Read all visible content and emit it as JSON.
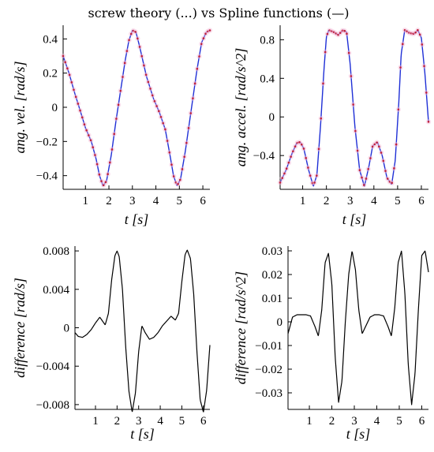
{
  "figure": {
    "title": "screw theory (...) vs Spline functions (—)",
    "colors": {
      "spline": "#1f2fd6",
      "screw": "#c0203a",
      "screw_fill": "#f2b8d8",
      "difference": "#000000",
      "axis": "#000000"
    }
  },
  "chart_data": [
    {
      "id": "ang-vel",
      "type": "line",
      "ylabel": "ang. vel. [rad/s]",
      "xlabel": "t [s]",
      "xlim": [
        0.05,
        6.3
      ],
      "ylim": [
        -0.48,
        0.48
      ],
      "xticks": [
        1,
        2,
        3,
        4,
        5,
        6
      ],
      "xtick_labels": [
        "1",
        "2",
        "3",
        "4",
        "5",
        "6"
      ],
      "yticks": [
        0.4,
        0.2,
        0,
        -0.2,
        -0.4
      ],
      "ytick_labels": [
        "0.4",
        "0.2",
        "0",
        "−0.2",
        "−0.4"
      ],
      "series": [
        {
          "style": "solid",
          "x": [
            0.05,
            0.3,
            0.55,
            0.8,
            1.0,
            1.25,
            1.45,
            1.6,
            1.75,
            1.9,
            2.1,
            2.3,
            2.5,
            2.7,
            2.85,
            3.0,
            3.15,
            3.3,
            3.6,
            3.9,
            4.15,
            4.4,
            4.6,
            4.75,
            4.9,
            5.05,
            5.25,
            5.5,
            5.75,
            5.95,
            6.15,
            6.3
          ],
          "y": [
            0.3,
            0.2,
            0.08,
            -0.03,
            -0.12,
            -0.2,
            -0.3,
            -0.4,
            -0.46,
            -0.43,
            -0.28,
            -0.08,
            0.1,
            0.28,
            0.39,
            0.45,
            0.44,
            0.36,
            0.18,
            0.05,
            -0.03,
            -0.13,
            -0.28,
            -0.4,
            -0.46,
            -0.42,
            -0.26,
            -0.02,
            0.22,
            0.38,
            0.44,
            0.45
          ]
        },
        {
          "style": "dotted",
          "samples": 70
        }
      ]
    },
    {
      "id": "ang-accel",
      "type": "line",
      "ylabel": "ang. accel. [rad/s^2]",
      "xlabel": "t [s]",
      "xlim": [
        0.05,
        6.3
      ],
      "ylim": [
        -0.75,
        0.95
      ],
      "xticks": [
        1,
        2,
        3,
        4,
        5,
        6
      ],
      "xtick_labels": [
        "1",
        "2",
        "3",
        "4",
        "5",
        "6"
      ],
      "yticks": [
        0.8,
        0.4,
        0,
        -0.4
      ],
      "ytick_labels": [
        "0.8",
        "0.4",
        "0",
        "−0.4"
      ],
      "series": [
        {
          "style": "solid",
          "x": [
            0.05,
            0.3,
            0.55,
            0.75,
            0.9,
            1.05,
            1.25,
            1.45,
            1.6,
            1.75,
            1.9,
            2.0,
            2.1,
            2.3,
            2.5,
            2.7,
            2.85,
            3.0,
            3.2,
            3.4,
            3.6,
            3.8,
            3.95,
            4.15,
            4.35,
            4.55,
            4.75,
            4.9,
            5.05,
            5.15,
            5.3,
            5.5,
            5.7,
            5.85,
            6.0,
            6.15,
            6.3
          ],
          "y": [
            -0.68,
            -0.55,
            -0.38,
            -0.27,
            -0.26,
            -0.33,
            -0.55,
            -0.72,
            -0.6,
            -0.1,
            0.5,
            0.83,
            0.9,
            0.88,
            0.85,
            0.9,
            0.88,
            0.55,
            -0.1,
            -0.55,
            -0.72,
            -0.5,
            -0.3,
            -0.26,
            -0.4,
            -0.63,
            -0.7,
            -0.45,
            0.15,
            0.65,
            0.9,
            0.87,
            0.86,
            0.9,
            0.82,
            0.45,
            -0.05
          ]
        },
        {
          "style": "dotted",
          "samples": 70
        }
      ]
    },
    {
      "id": "diff-vel",
      "type": "line",
      "ylabel": "difference [rad/s]",
      "xlabel": "t [s]",
      "xlim": [
        0.05,
        6.3
      ],
      "ylim": [
        -0.0085,
        0.0085
      ],
      "xticks": [
        1,
        2,
        3,
        4,
        5,
        6
      ],
      "xtick_labels": [
        "1",
        "2",
        "3",
        "4",
        "5",
        "6"
      ],
      "yticks": [
        0.008,
        0.004,
        0,
        -0.004,
        -0.008
      ],
      "ytick_labels": [
        "0.008",
        "0.004",
        "0",
        "−0.004",
        "−0.008"
      ],
      "series": [
        {
          "style": "solid",
          "x": [
            0.05,
            0.2,
            0.4,
            0.6,
            0.8,
            1.0,
            1.2,
            1.45,
            1.6,
            1.75,
            1.9,
            2.0,
            2.1,
            2.25,
            2.4,
            2.55,
            2.7,
            2.85,
            3.0,
            3.15,
            3.3,
            3.5,
            3.7,
            3.9,
            4.1,
            4.3,
            4.5,
            4.7,
            4.85,
            5.0,
            5.15,
            5.25,
            5.4,
            5.55,
            5.7,
            5.85,
            6.0,
            6.15,
            6.3
          ],
          "y": [
            -0.0005,
            -0.0009,
            -0.001,
            -0.0007,
            -0.0002,
            0.0005,
            0.0011,
            0.0003,
            0.0015,
            0.005,
            0.0075,
            0.008,
            0.0074,
            0.004,
            -0.002,
            -0.0066,
            -0.0088,
            -0.0068,
            -0.0025,
            0.0002,
            -0.0005,
            -0.0012,
            -0.001,
            -0.0005,
            0.0002,
            0.0007,
            0.0012,
            0.0008,
            0.0015,
            0.0048,
            0.0076,
            0.0081,
            0.0072,
            0.0035,
            -0.0025,
            -0.0075,
            -0.0088,
            -0.0065,
            -0.0018
          ]
        }
      ]
    },
    {
      "id": "diff-accel",
      "type": "line",
      "ylabel": "difference [rad/s^2]",
      "xlabel": "t [s]",
      "xlim": [
        0.05,
        6.3
      ],
      "ylim": [
        -0.037,
        0.032
      ],
      "xticks": [
        1,
        2,
        3,
        4,
        5,
        6
      ],
      "xtick_labels": [
        "1",
        "2",
        "3",
        "4",
        "5",
        "6"
      ],
      "yticks": [
        0.03,
        0.02,
        0.01,
        0,
        -0.01,
        -0.02,
        -0.03
      ],
      "ytick_labels": [
        "0.03",
        "0.02",
        "0.01",
        "0",
        "−0.01",
        "−0.02",
        "−0.03"
      ],
      "series": [
        {
          "style": "solid",
          "x": [
            0.05,
            0.25,
            0.45,
            0.65,
            0.85,
            1.05,
            1.25,
            1.4,
            1.55,
            1.7,
            1.85,
            2.0,
            2.15,
            2.3,
            2.45,
            2.6,
            2.75,
            2.9,
            3.05,
            3.2,
            3.35,
            3.5,
            3.7,
            3.9,
            4.1,
            4.3,
            4.5,
            4.65,
            4.8,
            4.95,
            5.1,
            5.25,
            5.4,
            5.55,
            5.7,
            5.85,
            6.0,
            6.15,
            6.3
          ],
          "y": [
            -0.005,
            0.002,
            0.003,
            0.003,
            0.003,
            0.0025,
            -0.002,
            -0.006,
            0.005,
            0.025,
            0.029,
            0.016,
            -0.015,
            -0.034,
            -0.025,
            0.0,
            0.02,
            0.03,
            0.022,
            0.005,
            -0.005,
            -0.002,
            0.002,
            0.003,
            0.003,
            0.0025,
            -0.002,
            -0.006,
            0.006,
            0.025,
            0.03,
            0.012,
            -0.018,
            -0.035,
            -0.022,
            0.005,
            0.028,
            0.03,
            0.021
          ]
        }
      ]
    }
  ]
}
